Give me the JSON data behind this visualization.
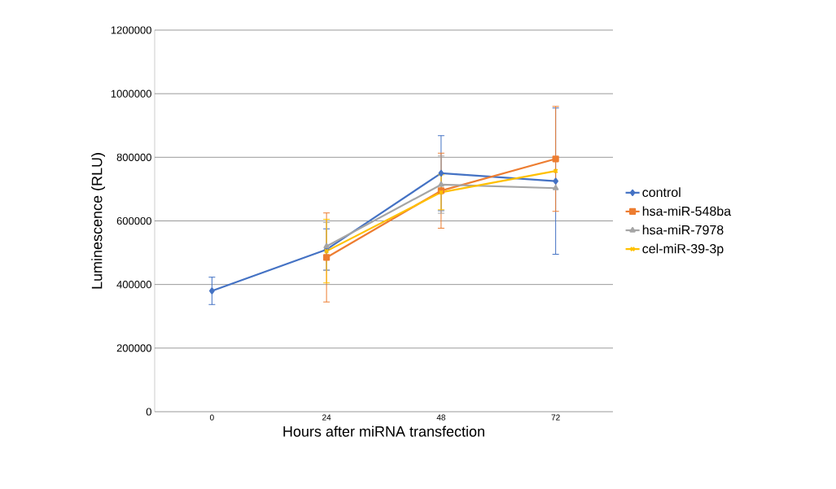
{
  "chart_data": {
    "type": "line",
    "xlabel": "Hours after miRNA transfection",
    "ylabel": "Luminescence (RLU)",
    "categories": [
      "0",
      "24",
      "48",
      "72"
    ],
    "ylim": [
      0,
      1200000
    ],
    "yticks": [
      0,
      200000,
      400000,
      600000,
      800000,
      1000000,
      1200000
    ],
    "grid": "y",
    "legend": "right",
    "series": [
      {
        "name": "control",
        "color": "#4472c4",
        "marker": "diamond",
        "values": [
          380000,
          510000,
          750000,
          725000
        ],
        "errors": [
          43000,
          65000,
          118000,
          230000
        ]
      },
      {
        "name": "hsa-miR-548ba",
        "color": "#ed7d31",
        "marker": "square",
        "values": [
          null,
          485000,
          695000,
          795000
        ],
        "errors": [
          null,
          140000,
          118000,
          165000
        ]
      },
      {
        "name": "hsa-miR-7978",
        "color": "#a5a5a5",
        "marker": "triangle",
        "values": [
          null,
          520000,
          714000,
          703000
        ],
        "errors": [
          null,
          75000,
          90000,
          null
        ]
      },
      {
        "name": "cel-miR-39-3p",
        "color": "#ffc000",
        "marker": "cross",
        "values": [
          null,
          505000,
          690000,
          757000
        ],
        "errors": [
          null,
          100000,
          55000,
          null
        ]
      }
    ]
  }
}
